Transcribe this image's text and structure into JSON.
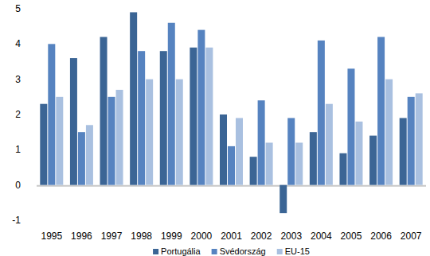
{
  "chart_data": {
    "type": "bar",
    "categories": [
      "1995",
      "1996",
      "1997",
      "1998",
      "1999",
      "2000",
      "2001",
      "2002",
      "2003",
      "2004",
      "2005",
      "2006",
      "2007"
    ],
    "series": [
      {
        "name": "Portugália",
        "color": "#3b6595",
        "values": [
          2.3,
          3.6,
          4.2,
          4.9,
          3.8,
          3.9,
          2.0,
          0.8,
          -0.8,
          1.5,
          0.9,
          1.4,
          1.9
        ]
      },
      {
        "name": "Svédország",
        "color": "#5683c0",
        "values": [
          4.0,
          1.5,
          2.5,
          3.8,
          4.6,
          4.4,
          1.1,
          2.4,
          1.9,
          4.1,
          3.3,
          4.2,
          2.5
        ]
      },
      {
        "name": "EU-15",
        "color": "#a9c0e0",
        "values": [
          2.5,
          1.7,
          2.7,
          3.0,
          3.0,
          3.9,
          1.9,
          1.2,
          1.2,
          2.3,
          1.8,
          3.0,
          2.6
        ]
      }
    ],
    "ylim": [
      -1,
      5
    ],
    "yticks": [
      -1,
      0,
      1,
      2,
      3,
      4,
      5
    ],
    "grid": false,
    "legend": "bottom"
  }
}
